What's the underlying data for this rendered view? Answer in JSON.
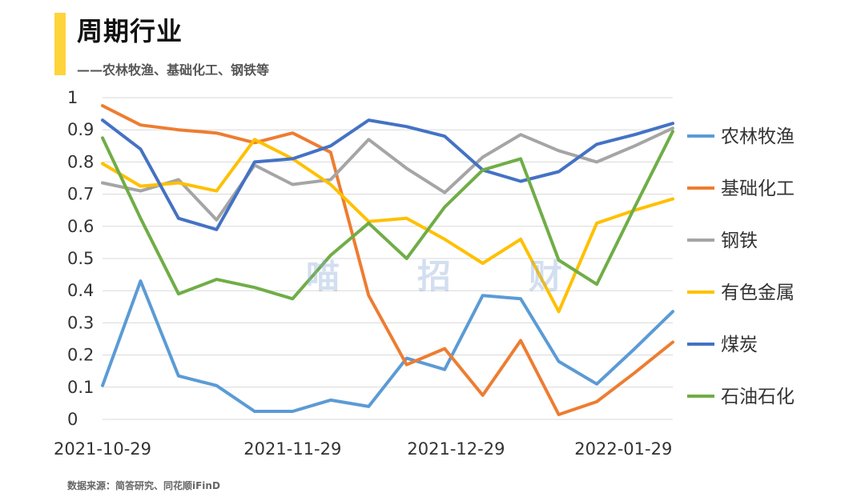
{
  "header": {
    "title": "周期行业",
    "subtitle": "——农林牧渔、基础化工、钢铁等",
    "accent_color": "#FFD43B"
  },
  "footer": {
    "source": "数据来源：简答研究、同花顺iFinD"
  },
  "watermark": {
    "chars": [
      "喵",
      "招",
      "财"
    ]
  },
  "chart_data": {
    "type": "line",
    "title": "",
    "xlabel": "",
    "ylabel": "",
    "ylim": [
      0,
      1
    ],
    "yticks": [
      "0",
      "0.1",
      "0.2",
      "0.3",
      "0.4",
      "0.5",
      "0.6",
      "0.7",
      "0.8",
      "0.9",
      "1"
    ],
    "x_tick_labels": [
      {
        "index": 0,
        "label": "2021-10-29"
      },
      {
        "index": 5,
        "label": "2021-11-29"
      },
      {
        "index": 9.3,
        "label": "2021-12-29"
      },
      {
        "index": 13.7,
        "label": "2022-01-29"
      }
    ],
    "grid": true,
    "legend_position": "right",
    "num_points": 16,
    "series": [
      {
        "name": "农林牧渔",
        "color": "#5B9BD5",
        "values": [
          0.105,
          0.43,
          0.135,
          0.105,
          0.025,
          0.025,
          0.06,
          0.04,
          0.19,
          0.155,
          0.385,
          0.375,
          0.18,
          0.11,
          0.22,
          0.335
        ]
      },
      {
        "name": "基础化工",
        "color": "#ED7D31",
        "values": [
          0.975,
          0.915,
          0.9,
          0.89,
          0.86,
          0.89,
          0.83,
          0.385,
          0.17,
          0.22,
          0.075,
          0.245,
          0.015,
          0.055,
          0.145,
          0.24
        ]
      },
      {
        "name": "钢铁",
        "color": "#A5A5A5",
        "values": [
          0.735,
          0.71,
          0.745,
          0.62,
          0.79,
          0.73,
          0.745,
          0.87,
          0.78,
          0.705,
          0.815,
          0.885,
          0.835,
          0.8,
          0.85,
          0.905
        ]
      },
      {
        "name": "有色金属",
        "color": "#FFC000",
        "values": [
          0.795,
          0.725,
          0.735,
          0.71,
          0.87,
          0.81,
          0.73,
          0.615,
          0.625,
          0.56,
          0.485,
          0.56,
          0.335,
          0.61,
          0.65,
          0.685
        ]
      },
      {
        "name": "煤炭",
        "color": "#4472C4",
        "values": [
          0.93,
          0.84,
          0.625,
          0.59,
          0.8,
          0.81,
          0.85,
          0.93,
          0.91,
          0.88,
          0.775,
          0.74,
          0.77,
          0.855,
          0.885,
          0.92
        ]
      },
      {
        "name": "石油石化",
        "color": "#70AD47",
        "values": [
          0.875,
          0.625,
          0.39,
          0.435,
          0.41,
          0.375,
          0.51,
          0.61,
          0.5,
          0.66,
          0.775,
          0.81,
          0.495,
          0.42,
          0.66,
          0.895
        ]
      }
    ]
  }
}
